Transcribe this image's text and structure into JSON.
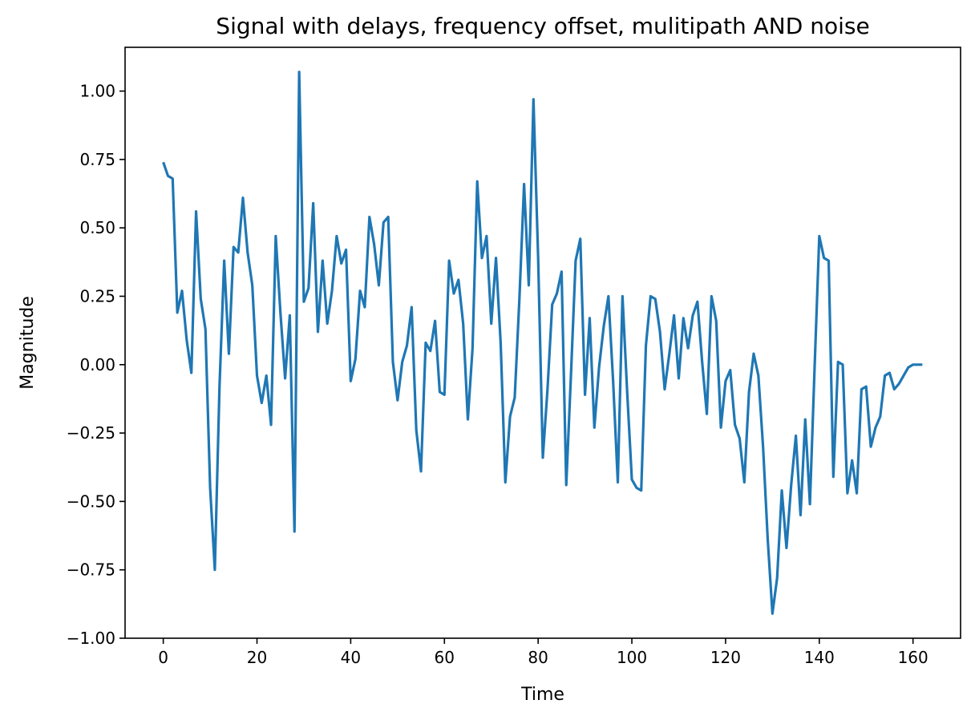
{
  "chart_data": {
    "type": "line",
    "title": "Signal with delays, frequency offset, mulitipath AND noise",
    "xlabel": "Time",
    "ylabel": "Magnitude",
    "xlim": [
      -8.15,
      170.15
    ],
    "ylim": [
      -1.0,
      1.16
    ],
    "grid": false,
    "x_ticks": [
      {
        "value": 0,
        "label": "0"
      },
      {
        "value": 20,
        "label": "20"
      },
      {
        "value": 40,
        "label": "40"
      },
      {
        "value": 60,
        "label": "60"
      },
      {
        "value": 80,
        "label": "80"
      },
      {
        "value": 100,
        "label": "100"
      },
      {
        "value": 120,
        "label": "120"
      },
      {
        "value": 140,
        "label": "140"
      },
      {
        "value": 160,
        "label": "160"
      }
    ],
    "y_ticks": [
      {
        "value": 1.0,
        "label": "1.00"
      },
      {
        "value": 0.75,
        "label": "0.75"
      },
      {
        "value": 0.5,
        "label": "0.50"
      },
      {
        "value": 0.25,
        "label": "0.25"
      },
      {
        "value": 0.0,
        "label": "0.00"
      },
      {
        "value": -0.25,
        "label": "−0.25"
      },
      {
        "value": -0.5,
        "label": "−0.50"
      },
      {
        "value": -0.75,
        "label": "−0.75"
      },
      {
        "value": -1.0,
        "label": "−1.00"
      }
    ],
    "series": [
      {
        "color": "#1f77b4",
        "y": [
          0.74,
          0.69,
          0.68,
          0.19,
          0.27,
          0.09,
          -0.03,
          0.56,
          0.24,
          0.13,
          -0.45,
          -0.75,
          -0.08,
          0.38,
          0.04,
          0.43,
          0.41,
          0.61,
          0.41,
          0.29,
          -0.04,
          -0.14,
          -0.04,
          -0.22,
          0.47,
          0.19,
          -0.05,
          0.18,
          -0.61,
          1.07,
          0.23,
          0.28,
          0.59,
          0.12,
          0.38,
          0.15,
          0.27,
          0.47,
          0.37,
          0.42,
          -0.06,
          0.02,
          0.27,
          0.21,
          0.54,
          0.44,
          0.29,
          0.52,
          0.54,
          0.01,
          -0.13,
          0.01,
          0.07,
          0.21,
          -0.24,
          -0.39,
          0.08,
          0.05,
          0.16,
          -0.1,
          -0.11,
          0.38,
          0.26,
          0.31,
          0.15,
          -0.2,
          0.06,
          0.67,
          0.39,
          0.47,
          0.15,
          0.39,
          0.08,
          -0.43,
          -0.19,
          -0.12,
          0.24,
          0.66,
          0.29,
          0.97,
          0.39,
          -0.34,
          -0.09,
          0.22,
          0.26,
          0.34,
          -0.44,
          -0.04,
          0.38,
          0.46,
          -0.11,
          0.17,
          -0.23,
          -0.01,
          0.14,
          0.25,
          -0.06,
          -0.43,
          0.25,
          -0.1,
          -0.42,
          -0.45,
          -0.46,
          0.07,
          0.25,
          0.24,
          0.12,
          -0.09,
          0.04,
          0.18,
          -0.05,
          0.17,
          0.06,
          0.18,
          0.23,
          0.01,
          -0.18,
          0.25,
          0.16,
          -0.23,
          -0.06,
          -0.02,
          -0.22,
          -0.27,
          -0.43,
          -0.1,
          0.04,
          -0.04,
          -0.3,
          -0.64,
          -0.91,
          -0.78,
          -0.46,
          -0.67,
          -0.44,
          -0.26,
          -0.55,
          -0.2,
          -0.51,
          -0.01,
          0.47,
          0.39,
          0.38,
          -0.41,
          0.01,
          0.0,
          -0.47,
          -0.35,
          -0.47,
          -0.09,
          -0.08,
          -0.3,
          -0.23,
          -0.19,
          -0.04,
          -0.03,
          -0.09,
          -0.07,
          -0.04,
          -0.01,
          0.0,
          0.0,
          0.0
        ]
      }
    ]
  }
}
